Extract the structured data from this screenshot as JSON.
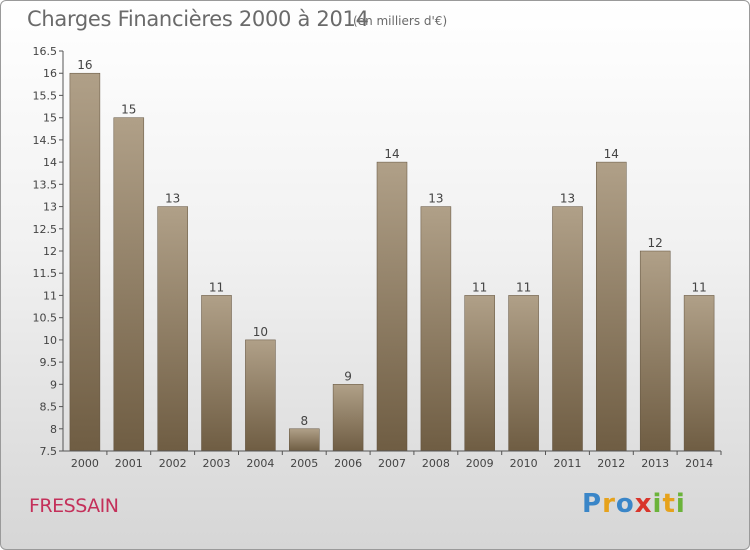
{
  "header": {
    "title": "Charges Financières 2000 à 2014",
    "unit": "(en milliers d'€)"
  },
  "footer": {
    "commune": "FRESSAIN",
    "logo": {
      "text": "Proxiti",
      "letters": [
        {
          "ch": "P",
          "color": "#3a86c8"
        },
        {
          "ch": "r",
          "color": "#e6a21c"
        },
        {
          "ch": "o",
          "color": "#3a86c8"
        },
        {
          "ch": "x",
          "color": "#d9352b"
        },
        {
          "ch": "i",
          "color": "#6bb33a"
        },
        {
          "ch": "t",
          "color": "#e6a21c"
        },
        {
          "ch": "i",
          "color": "#6bb33a"
        }
      ]
    }
  },
  "chart_data": {
    "type": "bar",
    "categories": [
      "2000",
      "2001",
      "2002",
      "2003",
      "2004",
      "2005",
      "2006",
      "2007",
      "2008",
      "2009",
      "2010",
      "2011",
      "2012",
      "2013",
      "2014"
    ],
    "values": [
      16,
      15,
      13,
      11,
      10,
      8,
      9,
      14,
      13,
      11,
      11,
      13,
      14,
      12,
      11
    ],
    "ylim": [
      7.5,
      16.5
    ],
    "yticks": [
      "16.5",
      "16",
      "15.5",
      "15",
      "14.5",
      "14",
      "13.5",
      "13",
      "12.5",
      "12",
      "11.5",
      "11",
      "10.5",
      "10",
      "9.5",
      "9",
      "8.5",
      "8",
      "7.5"
    ],
    "grid": false,
    "colors": {
      "bar_light": "#b0a088",
      "bar_dark": "#6f5d43",
      "axis": "#555555",
      "text": "#444444"
    }
  }
}
